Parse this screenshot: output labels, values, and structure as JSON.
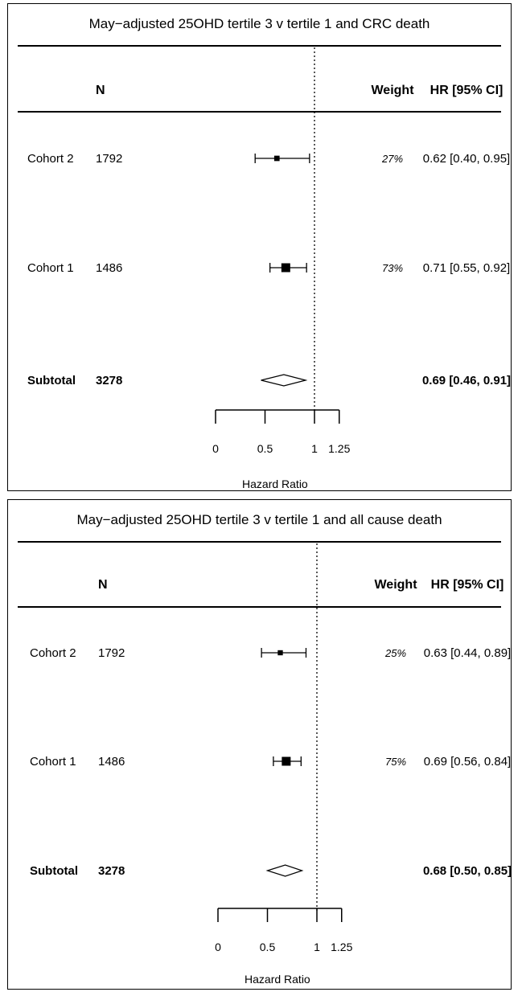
{
  "chart_data": [
    {
      "type": "forest",
      "title": "May−adjusted 25OHD tertile 3 v tertile 1 and CRC  death",
      "columns": {
        "n": "N",
        "weight": "Weight",
        "hr": "HR [95% CI]"
      },
      "rows": [
        {
          "label": "Cohort 2",
          "n": "1792",
          "weight": "27%",
          "hr_text": "0.62 [0.40, 0.95]",
          "hr": 0.62,
          "lo": 0.4,
          "hi": 0.95,
          "kind": "study"
        },
        {
          "label": "Cohort 1",
          "n": "1486",
          "weight": "73%",
          "hr_text": "0.71 [0.55, 0.92]",
          "hr": 0.71,
          "lo": 0.55,
          "hi": 0.92,
          "kind": "study"
        },
        {
          "label": "Subtotal",
          "n": "3278",
          "weight": "",
          "hr_text": "0.69 [0.46, 0.91]",
          "hr": 0.69,
          "lo": 0.46,
          "hi": 0.91,
          "kind": "summary"
        }
      ],
      "reference_line": 1,
      "xticks": [
        0,
        0.5,
        1,
        1.25
      ],
      "xtick_labels": [
        "0",
        "0.5",
        "1",
        "1.25"
      ],
      "xlim": [
        0,
        1.25
      ],
      "xlabel": "Hazard Ratio"
    },
    {
      "type": "forest",
      "title": "May−adjusted 25OHD tertile 3 v tertile 1 and all cause death",
      "columns": {
        "n": "N",
        "weight": "Weight",
        "hr": "HR [95% CI]"
      },
      "rows": [
        {
          "label": "Cohort 2",
          "n": "1792",
          "weight": "25%",
          "hr_text": "0.63 [0.44, 0.89]",
          "hr": 0.63,
          "lo": 0.44,
          "hi": 0.89,
          "kind": "study"
        },
        {
          "label": "Cohort 1",
          "n": "1486",
          "weight": "75%",
          "hr_text": "0.69 [0.56, 0.84]",
          "hr": 0.69,
          "lo": 0.56,
          "hi": 0.84,
          "kind": "study"
        },
        {
          "label": "Subtotal",
          "n": "3278",
          "weight": "",
          "hr_text": "0.68 [0.50, 0.85]",
          "hr": 0.68,
          "lo": 0.5,
          "hi": 0.85,
          "kind": "summary"
        }
      ],
      "reference_line": 1,
      "xticks": [
        0,
        0.5,
        1,
        1.25
      ],
      "xtick_labels": [
        "0",
        "0.5",
        "1",
        "1.25"
      ],
      "xlim": [
        0,
        1.25
      ],
      "xlabel": "Hazard Ratio"
    }
  ]
}
